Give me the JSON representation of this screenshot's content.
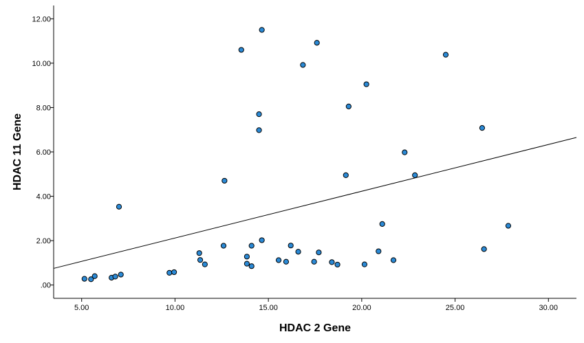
{
  "chart_data": {
    "type": "scatter",
    "xlabel": "HDAC 2 Gene",
    "ylabel": "HDAC 11 Gene",
    "xlim": [
      3.5,
      31.5
    ],
    "ylim": [
      -0.6,
      12.6
    ],
    "xticks": [
      5,
      10,
      15,
      20,
      25,
      30
    ],
    "xtick_labels": [
      "5.00",
      "10.00",
      "15.00",
      "20.00",
      "25.00",
      "30.00"
    ],
    "yticks": [
      0,
      2,
      4,
      6,
      8,
      10,
      12
    ],
    "ytick_labels": [
      ".00",
      "2.00",
      "4.00",
      "6.00",
      "8.00",
      "10.00",
      "12.00"
    ],
    "grid": false,
    "marker_color": "#2b8ad6",
    "marker_edge_color": "#000000",
    "fit_line": {
      "x": [
        3.5,
        31.5
      ],
      "y": [
        0.75,
        6.65
      ]
    },
    "points": [
      {
        "x": 5.15,
        "y": 0.28
      },
      {
        "x": 5.5,
        "y": 0.26
      },
      {
        "x": 5.7,
        "y": 0.4
      },
      {
        "x": 6.6,
        "y": 0.33
      },
      {
        "x": 6.8,
        "y": 0.38
      },
      {
        "x": 7.1,
        "y": 0.47
      },
      {
        "x": 7.0,
        "y": 3.53
      },
      {
        "x": 9.7,
        "y": 0.55
      },
      {
        "x": 9.95,
        "y": 0.58
      },
      {
        "x": 11.3,
        "y": 1.44
      },
      {
        "x": 11.35,
        "y": 1.13
      },
      {
        "x": 11.6,
        "y": 0.93
      },
      {
        "x": 12.6,
        "y": 1.77
      },
      {
        "x": 12.65,
        "y": 4.7
      },
      {
        "x": 13.55,
        "y": 10.6
      },
      {
        "x": 13.85,
        "y": 1.28
      },
      {
        "x": 13.85,
        "y": 0.96
      },
      {
        "x": 14.1,
        "y": 0.85
      },
      {
        "x": 14.1,
        "y": 1.77
      },
      {
        "x": 14.5,
        "y": 7.7
      },
      {
        "x": 14.5,
        "y": 6.98
      },
      {
        "x": 14.65,
        "y": 11.5
      },
      {
        "x": 14.65,
        "y": 2.02
      },
      {
        "x": 15.55,
        "y": 1.12
      },
      {
        "x": 15.95,
        "y": 1.05
      },
      {
        "x": 16.2,
        "y": 1.78
      },
      {
        "x": 16.6,
        "y": 1.5
      },
      {
        "x": 16.85,
        "y": 9.92
      },
      {
        "x": 17.45,
        "y": 1.05
      },
      {
        "x": 17.6,
        "y": 10.92
      },
      {
        "x": 17.7,
        "y": 1.47
      },
      {
        "x": 18.4,
        "y": 1.03
      },
      {
        "x": 18.7,
        "y": 0.92
      },
      {
        "x": 19.15,
        "y": 4.95
      },
      {
        "x": 19.3,
        "y": 8.05
      },
      {
        "x": 20.15,
        "y": 0.93
      },
      {
        "x": 20.25,
        "y": 9.05
      },
      {
        "x": 20.9,
        "y": 1.52
      },
      {
        "x": 21.1,
        "y": 2.75
      },
      {
        "x": 21.7,
        "y": 1.12
      },
      {
        "x": 22.3,
        "y": 5.98
      },
      {
        "x": 22.85,
        "y": 4.95
      },
      {
        "x": 24.5,
        "y": 10.38
      },
      {
        "x": 26.45,
        "y": 7.08
      },
      {
        "x": 26.55,
        "y": 1.62
      },
      {
        "x": 27.85,
        "y": 2.67
      }
    ]
  }
}
